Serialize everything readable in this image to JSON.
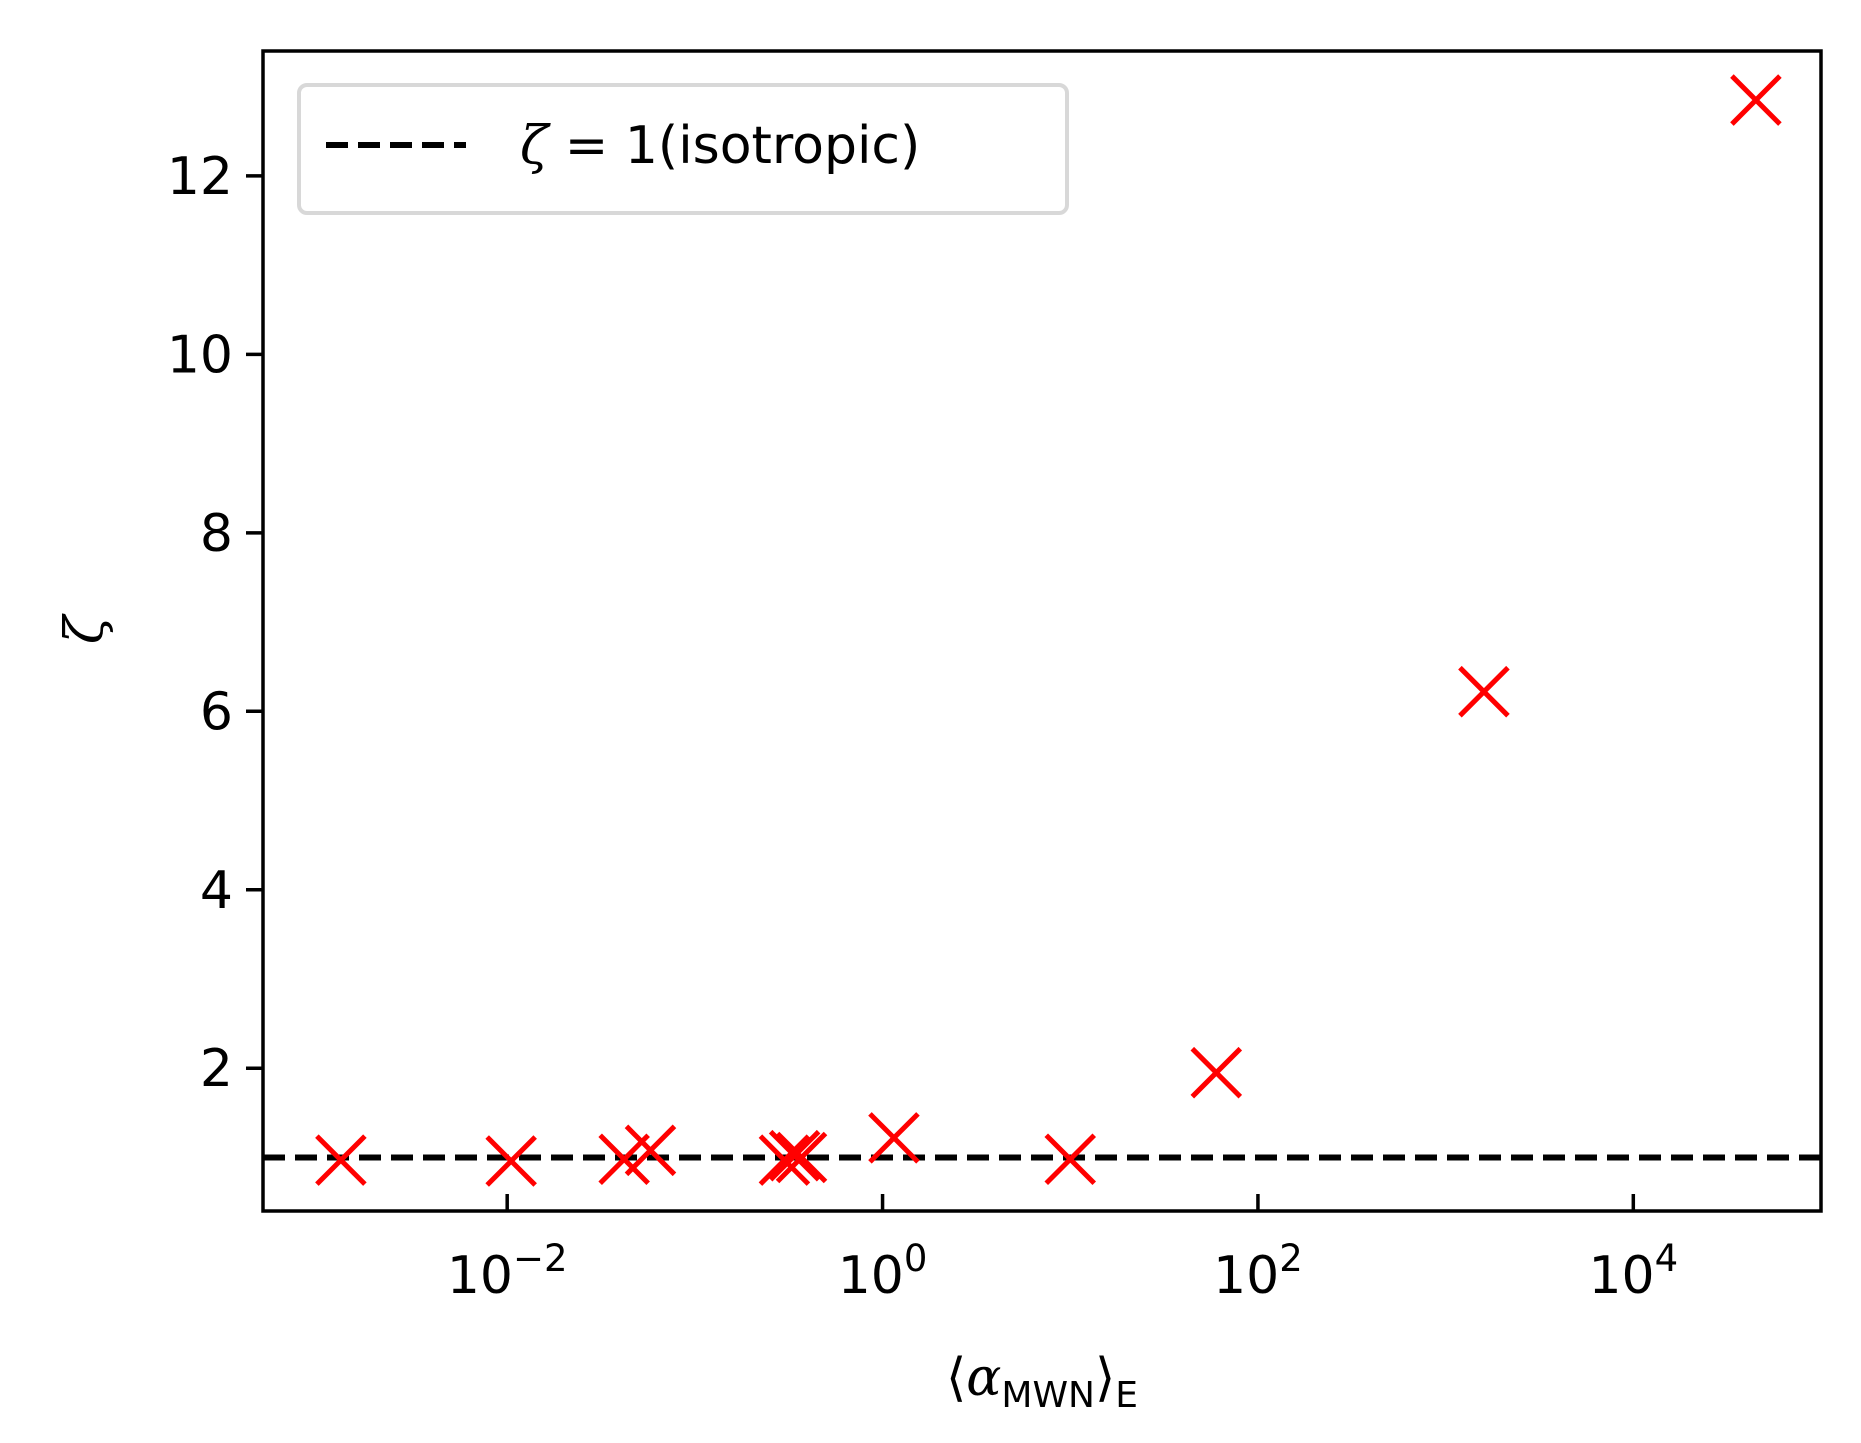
{
  "chart_data": {
    "type": "scatter",
    "title": "",
    "xlabel": {
      "open": "⟨",
      "symbol": "α",
      "sub": "MWN",
      "close": "⟩",
      "outer_sub": "E"
    },
    "ylabel": "ζ",
    "x_scale": "log",
    "xlim": [
      0.0005,
      100000
    ],
    "ylim": [
      0.4,
      13.4
    ],
    "x_ticks": [
      {
        "value": 0.01,
        "base": "10",
        "exp": "−2"
      },
      {
        "value": 1,
        "base": "10",
        "exp": "0"
      },
      {
        "value": 100,
        "base": "10",
        "exp": "2"
      },
      {
        "value": 10000,
        "base": "10",
        "exp": "4"
      }
    ],
    "y_ticks": [
      {
        "value": 2,
        "label": "2"
      },
      {
        "value": 4,
        "label": "4"
      },
      {
        "value": 6,
        "label": "6"
      },
      {
        "value": 8,
        "label": "8"
      },
      {
        "value": 10,
        "label": "10"
      },
      {
        "value": 12,
        "label": "12"
      }
    ],
    "grid": false,
    "legend_position": "top-left",
    "series": [
      {
        "kind": "points",
        "marker": "x",
        "color": "#ff0000",
        "points": [
          {
            "x": 0.0013,
            "y": 0.97
          },
          {
            "x": 0.0105,
            "y": 0.96
          },
          {
            "x": 0.042,
            "y": 0.98
          },
          {
            "x": 0.058,
            "y": 1.08
          },
          {
            "x": 0.3,
            "y": 0.97
          },
          {
            "x": 0.34,
            "y": 1.02
          },
          {
            "x": 0.37,
            "y": 1.0
          },
          {
            "x": 1.15,
            "y": 1.22
          },
          {
            "x": 10.0,
            "y": 0.98
          },
          {
            "x": 60.0,
            "y": 1.95
          },
          {
            "x": 1600,
            "y": 6.22
          },
          {
            "x": 45000,
            "y": 12.85
          }
        ]
      },
      {
        "kind": "hline",
        "name_symbol": "ζ",
        "name_rest": " = 1(isotropic)",
        "y": 1,
        "color": "#000000",
        "linestyle": "dashed"
      }
    ]
  }
}
